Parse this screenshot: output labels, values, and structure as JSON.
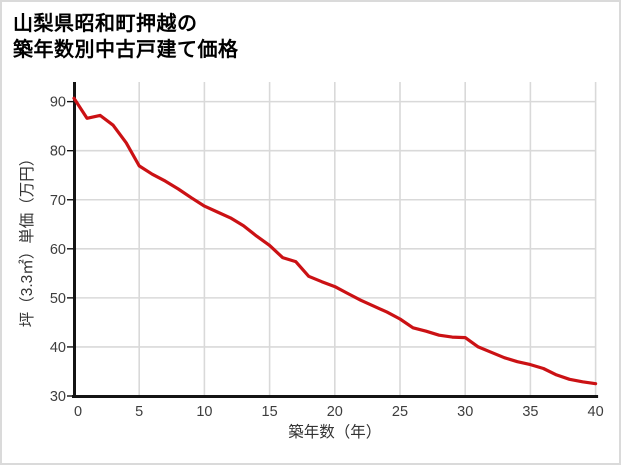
{
  "page": {
    "title_line1": "山梨県昭和町押越の",
    "title_line2": "築年数別中古戸建て価格"
  },
  "chart_data": {
    "type": "line",
    "title": "山梨県昭和町押越の築年数別中古戸建て価格",
    "xlabel": "築年数（年）",
    "ylabel": "坪（3.3㎡）単価（万円）",
    "x": [
      0,
      1,
      2,
      3,
      4,
      5,
      6,
      7,
      8,
      9,
      10,
      11,
      12,
      13,
      14,
      15,
      16,
      17,
      18,
      19,
      20,
      21,
      22,
      23,
      24,
      25,
      26,
      27,
      28,
      29,
      30,
      31,
      32,
      33,
      34,
      35,
      36,
      37,
      38,
      39,
      40
    ],
    "values": [
      90.7,
      86.6,
      87.2,
      85.2,
      81.6,
      76.9,
      75.2,
      73.8,
      72.2,
      70.4,
      68.7,
      67.5,
      66.3,
      64.7,
      62.6,
      60.7,
      58.2,
      57.4,
      54.4,
      53.3,
      52.3,
      50.9,
      49.5,
      48.3,
      47.1,
      45.7,
      43.9,
      43.2,
      42.4,
      42.0,
      41.9,
      40.0,
      38.9,
      37.8,
      37.0,
      36.4,
      35.6,
      34.3,
      33.4,
      32.9,
      32.5
    ],
    "xticks": [
      0,
      5,
      10,
      15,
      20,
      25,
      30,
      35,
      40
    ],
    "yticks": [
      30,
      40,
      50,
      60,
      70,
      80,
      90
    ],
    "xlim": [
      0,
      40
    ],
    "ylim": [
      30,
      94
    ],
    "grid": true,
    "legend": "none",
    "colors": {
      "line": "#cb1114",
      "grid": "#d9d9d9",
      "axis": "#141414",
      "tick_label": "#3d3d3d",
      "axis_label": "#333333",
      "frame": "#dadada"
    }
  }
}
